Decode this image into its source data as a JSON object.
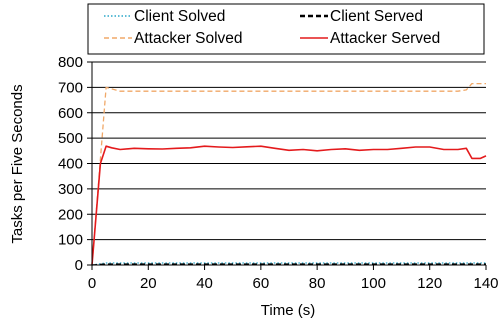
{
  "chart_data": {
    "type": "line",
    "title": "",
    "xlabel": "Time (s)",
    "ylabel": "Tasks per Five Seconds",
    "xlim": [
      0,
      140
    ],
    "ylim": [
      0,
      800
    ],
    "x_ticks": [
      "0",
      "20",
      "40",
      "60",
      "80",
      "100",
      "120",
      "140"
    ],
    "y_ticks": [
      "0",
      "100",
      "200",
      "300",
      "400",
      "500",
      "600",
      "700",
      "800"
    ],
    "grid": "horizontal",
    "legend_position": "top",
    "series": [
      {
        "name": "Client Solved",
        "color": "#2aa7c9",
        "style": "dotted",
        "x": [
          0,
          5,
          10,
          20,
          30,
          40,
          50,
          60,
          70,
          80,
          90,
          100,
          110,
          120,
          130,
          135,
          140
        ],
        "y": [
          0,
          8,
          8,
          8,
          8,
          8,
          8,
          8,
          8,
          8,
          8,
          8,
          8,
          8,
          8,
          8,
          8
        ]
      },
      {
        "name": "Client Served",
        "color": "#000000",
        "style": "dashed",
        "x": [
          0,
          5,
          10,
          20,
          30,
          40,
          50,
          60,
          70,
          80,
          90,
          100,
          110,
          120,
          130,
          135,
          140
        ],
        "y": [
          0,
          4,
          4,
          4,
          4,
          4,
          4,
          4,
          4,
          4,
          4,
          4,
          4,
          4,
          4,
          4,
          4
        ]
      },
      {
        "name": "Attacker Solved",
        "color": "#f0a868",
        "style": "dashed",
        "x": [
          0,
          5,
          10,
          20,
          30,
          40,
          50,
          60,
          70,
          80,
          90,
          100,
          110,
          120,
          130,
          133,
          135,
          140
        ],
        "y": [
          0,
          700,
          685,
          685,
          685,
          685,
          685,
          685,
          685,
          685,
          685,
          685,
          685,
          685,
          685,
          690,
          715,
          715
        ]
      },
      {
        "name": "Attacker Served",
        "color": "#e41a1c",
        "style": "solid",
        "x": [
          0,
          3,
          5,
          7,
          10,
          15,
          20,
          25,
          30,
          35,
          40,
          45,
          50,
          55,
          60,
          65,
          70,
          75,
          80,
          85,
          90,
          95,
          100,
          105,
          110,
          115,
          120,
          125,
          130,
          133,
          135,
          138,
          140
        ],
        "y": [
          0,
          400,
          468,
          462,
          455,
          460,
          458,
          457,
          460,
          462,
          468,
          465,
          463,
          466,
          468,
          460,
          452,
          455,
          450,
          455,
          458,
          452,
          455,
          455,
          460,
          465,
          465,
          455,
          455,
          460,
          420,
          420,
          430
        ]
      }
    ]
  }
}
